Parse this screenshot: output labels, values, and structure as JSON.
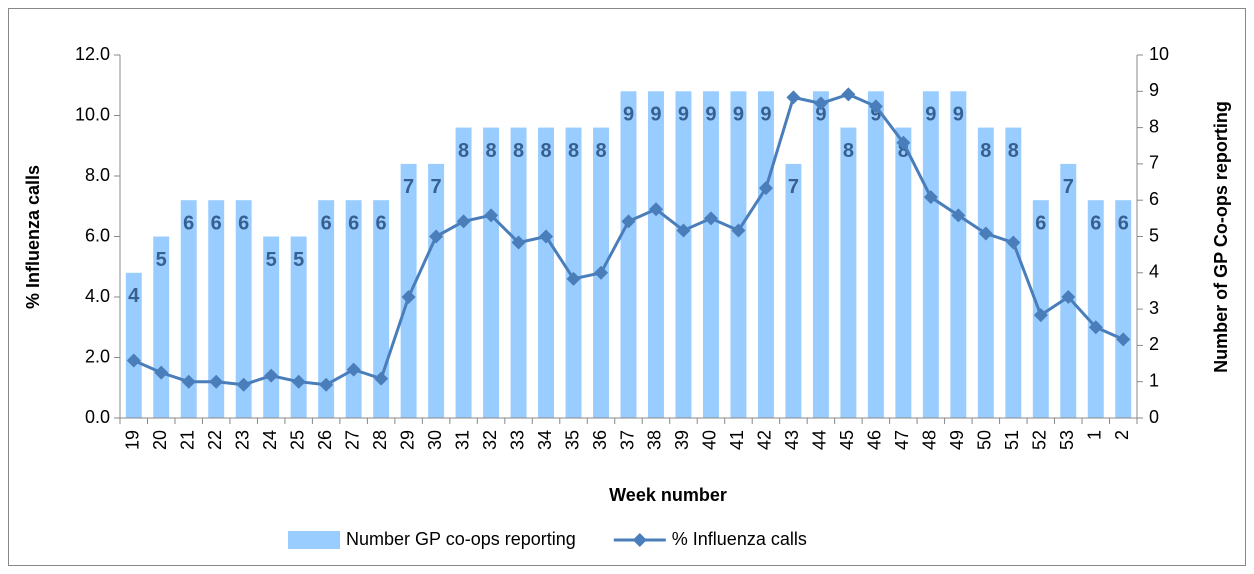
{
  "chart_data": {
    "type": "bar-line",
    "x_label": "Week number",
    "y_label": "% Influenza calls",
    "y2_label": "Number of GP Co-ops reporting",
    "categories": [
      "19",
      "20",
      "21",
      "22",
      "23",
      "24",
      "25",
      "26",
      "27",
      "28",
      "29",
      "30",
      "31",
      "32",
      "33",
      "34",
      "35",
      "36",
      "37",
      "38",
      "39",
      "40",
      "41",
      "42",
      "43",
      "44",
      "45",
      "46",
      "47",
      "48",
      "49",
      "50",
      "51",
      "52",
      "53",
      "1",
      "2"
    ],
    "series": [
      {
        "name": "Number GP co-ops reporting",
        "type": "bar",
        "axis": "y2",
        "color": "#99ccff",
        "label_color": "#376092",
        "values": [
          4,
          5,
          6,
          6,
          6,
          5,
          5,
          6,
          6,
          6,
          7,
          7,
          8,
          8,
          8,
          8,
          8,
          8,
          9,
          9,
          9,
          9,
          9,
          9,
          7,
          9,
          8,
          9,
          8,
          9,
          9,
          8,
          8,
          6,
          7,
          6,
          6
        ]
      },
      {
        "name": "% Influenza calls",
        "type": "line",
        "color": "#4a7ebb",
        "values": [
          1.9,
          1.5,
          1.2,
          1.2,
          1.1,
          1.4,
          1.2,
          1.1,
          1.6,
          1.3,
          4.0,
          6.0,
          6.5,
          6.7,
          5.8,
          6.0,
          4.6,
          4.8,
          6.5,
          6.9,
          6.2,
          6.6,
          6.2,
          7.6,
          10.6,
          10.4,
          10.7,
          10.3,
          9.1,
          7.3,
          6.7,
          6.1,
          5.8,
          3.4,
          4.0,
          3.0,
          2.6
        ]
      }
    ],
    "ylim": [
      0,
      12
    ],
    "yticks": [
      {
        "value": 0,
        "label": "0.0"
      },
      {
        "value": 2,
        "label": "2.0"
      },
      {
        "value": 4,
        "label": "4.0"
      },
      {
        "value": 6,
        "label": "6.0"
      },
      {
        "value": 8,
        "label": "8.0"
      },
      {
        "value": 10,
        "label": "10.0"
      },
      {
        "value": 12,
        "label": "12.0"
      }
    ],
    "y2lim": [
      0,
      10
    ],
    "y2ticks": [
      0,
      1,
      2,
      3,
      4,
      5,
      6,
      7,
      8,
      9,
      10
    ],
    "legend": "bottom"
  }
}
